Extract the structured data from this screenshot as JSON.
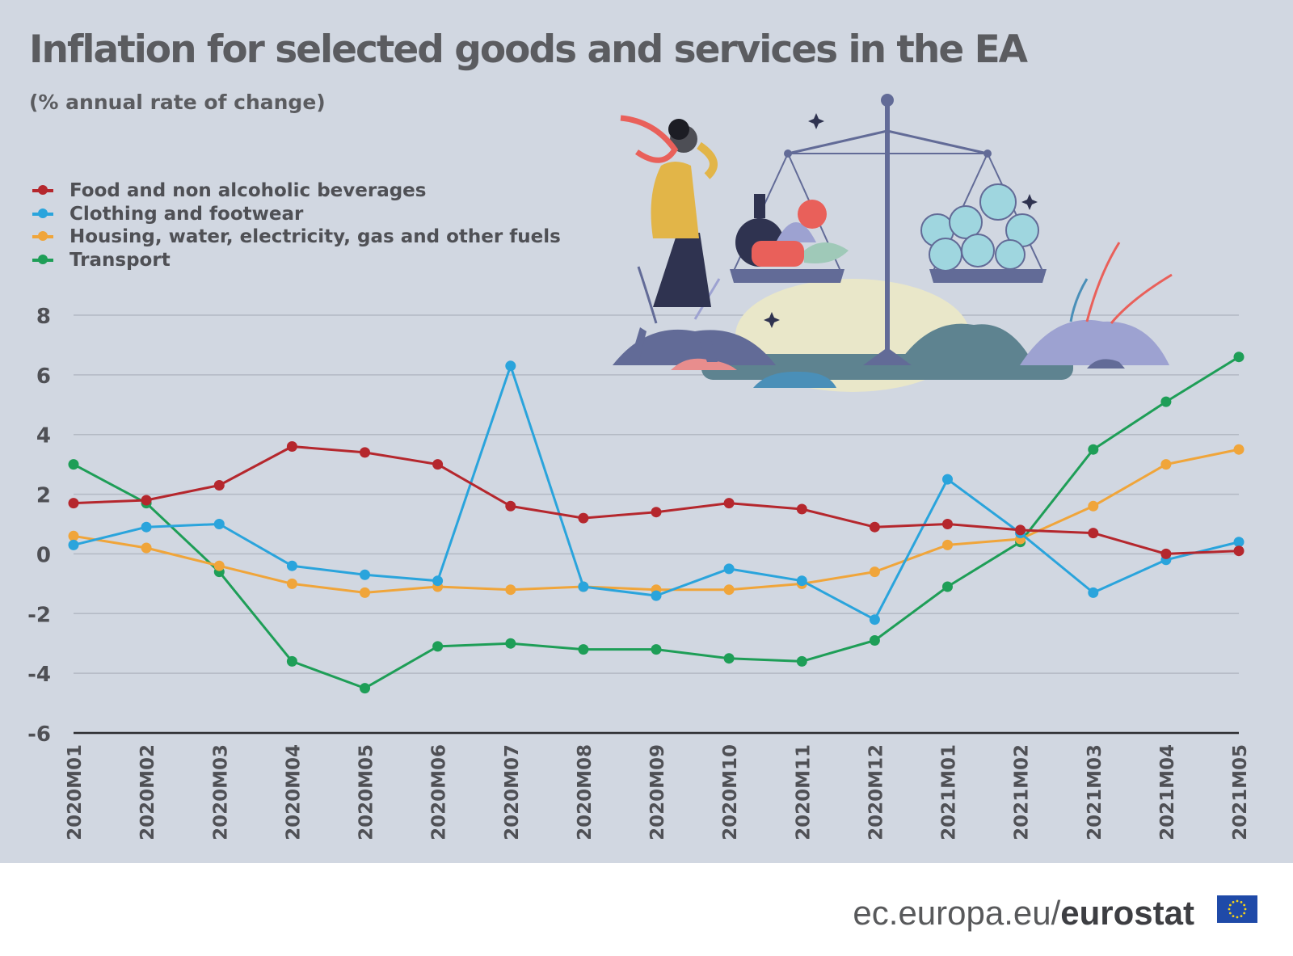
{
  "title": "Inflation for selected goods and services in the EA",
  "subtitle": "(% annual rate of change)",
  "footer": {
    "domain": "ec.europa.eu/",
    "brand": "eurostat"
  },
  "icons": {
    "illustration": "woman-with-scales-illustration",
    "flag": "eu-flag-icon"
  },
  "colors": {
    "background": "#d1d7e1",
    "food": "#b5272d",
    "clothing": "#2aa4dc",
    "housing": "#f0a53a",
    "transport": "#1e9e57"
  },
  "chart_data": {
    "type": "line",
    "ylim": [
      -6,
      8
    ],
    "yticks": [
      "8",
      "6",
      "4",
      "2",
      "0",
      "-2",
      "-4",
      "-6"
    ],
    "ytick_values": [
      8,
      6,
      4,
      2,
      0,
      -2,
      -4,
      -6
    ],
    "grid": true,
    "legend": "top-left",
    "categories": [
      "2020M01",
      "2020M02",
      "2020M03",
      "2020M04",
      "2020M05",
      "2020M06",
      "2020M07",
      "2020M08",
      "2020M09",
      "2020M10",
      "2020M11",
      "2020M12",
      "2021M01",
      "2021M02",
      "2021M03",
      "2021M04",
      "2021M05"
    ],
    "series": [
      {
        "name": "Food and non alcoholic beverages",
        "color": "#b5272d",
        "values": [
          1.7,
          1.8,
          2.3,
          3.6,
          3.4,
          3.0,
          1.6,
          1.2,
          1.4,
          1.7,
          1.5,
          0.9,
          1.0,
          0.8,
          0.7,
          0.0,
          0.1
        ]
      },
      {
        "name": "Clothing and footwear",
        "color": "#2aa4dc",
        "values": [
          0.3,
          0.9,
          1.0,
          -0.4,
          -0.7,
          -0.9,
          6.3,
          -1.1,
          -1.4,
          -0.5,
          -0.9,
          -2.2,
          2.5,
          0.7,
          -1.3,
          -0.2,
          0.4
        ]
      },
      {
        "name": "Housing, water, electricity, gas and other fuels",
        "color": "#f0a53a",
        "values": [
          0.6,
          0.2,
          -0.4,
          -1.0,
          -1.3,
          -1.1,
          -1.2,
          -1.1,
          -1.2,
          -1.2,
          -1.0,
          -0.6,
          0.3,
          0.5,
          1.6,
          3.0,
          3.5
        ]
      },
      {
        "name": "Transport",
        "color": "#1e9e57",
        "values": [
          3.0,
          1.7,
          -0.6,
          -3.6,
          -4.5,
          -3.1,
          -3.0,
          -3.2,
          -3.2,
          -3.5,
          -3.6,
          -2.9,
          -1.1,
          0.4,
          3.5,
          5.1,
          6.6
        ]
      }
    ]
  }
}
